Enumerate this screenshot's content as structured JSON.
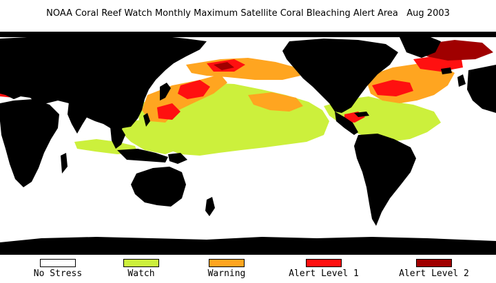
{
  "title": "NOAA Coral Reef Watch Monthly Maximum Satellite Coral Bleaching Alert Area   Aug 2003",
  "colors": {
    "ocean_no_stress": "#ffffff",
    "land": "#000000",
    "watch": "#ccf03c",
    "warning": "#ffa520",
    "alert_level_1": "#ff1010",
    "alert_level_2": "#a00000"
  },
  "legend": [
    {
      "label": "No Stress",
      "color": "#ffffff"
    },
    {
      "label": "Watch",
      "color": "#ccf03c"
    },
    {
      "label": "Warning",
      "color": "#ffa520"
    },
    {
      "label": "Alert Level 1",
      "color": "#ff1010"
    },
    {
      "label": "Alert Level 2",
      "color": "#a00000"
    }
  ]
}
